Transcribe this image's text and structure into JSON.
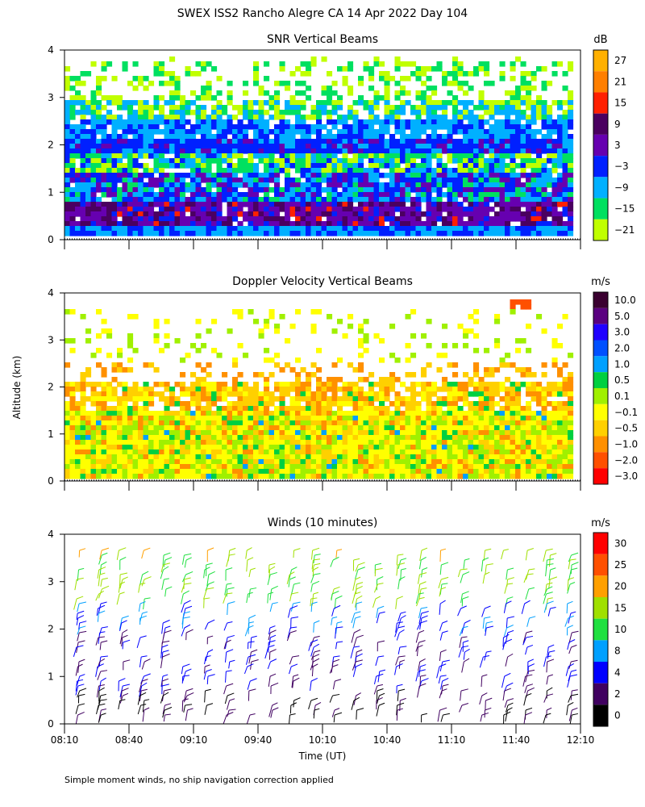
{
  "figure": {
    "title": "SWEX ISS2 Rancho Alegre CA  14 Apr 2022 Day 104",
    "shared_ylabel": "Altitude (km)",
    "footnote": "Simple moment winds, no ship navigation correction applied"
  },
  "chart_data": [
    {
      "type": "heatmap",
      "title": "SNR Vertical Beams",
      "ylim": [
        0,
        4
      ],
      "yticks": [
        "0",
        "1",
        "2",
        "3",
        "4"
      ],
      "x_tick_count": 9,
      "colorbar": {
        "unit": "dB",
        "labels": [
          "27",
          "21",
          "15",
          "9",
          "3",
          "−3",
          "−9",
          "−15",
          "−21"
        ],
        "colors": [
          "#ffb000",
          "#ff7f00",
          "#ff2000",
          "#4a0060",
          "#6600b0",
          "#0020ff",
          "#00b0ff",
          "#00e060",
          "#c0ff00"
        ]
      }
    },
    {
      "type": "heatmap",
      "title": "Doppler Velocity Vertical Beams",
      "ylim": [
        0,
        4
      ],
      "yticks": [
        "0",
        "1",
        "2",
        "3",
        "4"
      ],
      "x_tick_count": 9,
      "colorbar": {
        "unit": "m/s",
        "labels": [
          "10.0",
          "5.0",
          "3.0",
          "2.0",
          "1.0",
          "0.5",
          "0.1",
          "−0.1",
          "−0.5",
          "−1.0",
          "−2.0",
          "−3.0"
        ],
        "colors": [
          "#3a0030",
          "#5a0080",
          "#2000ff",
          "#0050ff",
          "#00a0ff",
          "#00d040",
          "#a0f000",
          "#ffff00",
          "#ffd000",
          "#ff9000",
          "#ff5000",
          "#ff0000"
        ]
      }
    },
    {
      "type": "scatter",
      "title": "Winds (10 minutes)",
      "ylim": [
        0,
        4
      ],
      "yticks": [
        "0",
        "1",
        "2",
        "3",
        "4"
      ],
      "xlabel": "Time (UT)",
      "xticks": [
        "08:10",
        "08:40",
        "09:10",
        "09:40",
        "10:10",
        "10:40",
        "11:10",
        "11:40",
        "12:10"
      ],
      "colorbar": {
        "unit": "m/s",
        "labels": [
          "30",
          "25",
          "20",
          "15",
          "10",
          "8",
          "4",
          "2",
          "0"
        ],
        "colors": [
          "#ff0000",
          "#ff5000",
          "#ffa000",
          "#a0e000",
          "#20e040",
          "#00a0ff",
          "#0000ff",
          "#400060",
          "#000000"
        ]
      }
    }
  ]
}
